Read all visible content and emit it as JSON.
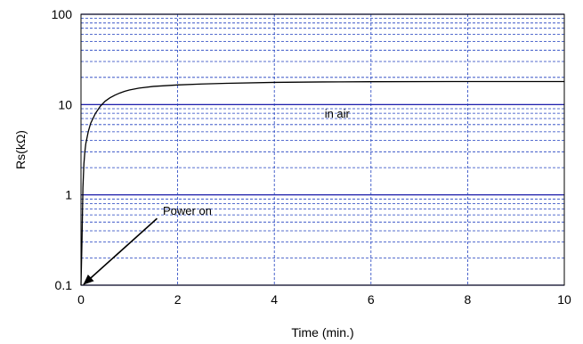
{
  "chart_data": {
    "type": "line",
    "title": "",
    "xlabel": "Time (min.)",
    "ylabel": "Rs(kΩ)",
    "xlim": [
      0,
      10
    ],
    "ylim": [
      0.1,
      100
    ],
    "y_scale": "log",
    "grid": true,
    "x_ticks": [
      0,
      2,
      4,
      6,
      8,
      10
    ],
    "x_tick_labels": [
      "0",
      "2",
      "4",
      "6",
      "8",
      "10"
    ],
    "y_ticks": [
      0.1,
      1,
      10,
      100
    ],
    "y_tick_labels": [
      "0.1",
      "1",
      "10",
      "100"
    ],
    "series": [
      {
        "color": "#000000",
        "points": [
          [
            0.0,
            0.1
          ],
          [
            0.02,
            0.3
          ],
          [
            0.04,
            1.2
          ],
          [
            0.06,
            2.2
          ],
          [
            0.08,
            3.0
          ],
          [
            0.1,
            3.7
          ],
          [
            0.15,
            5.0
          ],
          [
            0.2,
            6.2
          ],
          [
            0.3,
            8.0
          ],
          [
            0.4,
            9.6
          ],
          [
            0.5,
            10.9
          ],
          [
            0.6,
            11.9
          ],
          [
            0.7,
            12.7
          ],
          [
            0.8,
            13.4
          ],
          [
            0.9,
            14.0
          ],
          [
            1.0,
            14.5
          ],
          [
            1.2,
            15.2
          ],
          [
            1.5,
            15.9
          ],
          [
            2.0,
            16.5
          ],
          [
            2.5,
            16.9
          ],
          [
            3.0,
            17.2
          ],
          [
            4.0,
            17.6
          ],
          [
            5.0,
            17.8
          ],
          [
            6.0,
            17.9
          ],
          [
            8.0,
            18.0
          ],
          [
            10.0,
            18.0
          ]
        ]
      }
    ],
    "annotations": [
      {
        "text": "in air",
        "x": 5.3,
        "y": 7.2
      },
      {
        "text": "Power on",
        "x": 2.2,
        "y": 0.6,
        "arrow_to": [
          0.02,
          0.1
        ]
      }
    ]
  },
  "colors": {
    "grid_minor": "#1f3fbf",
    "grid_major": "#0000a0",
    "plot_border": "#000000",
    "arrow": "#000000"
  }
}
